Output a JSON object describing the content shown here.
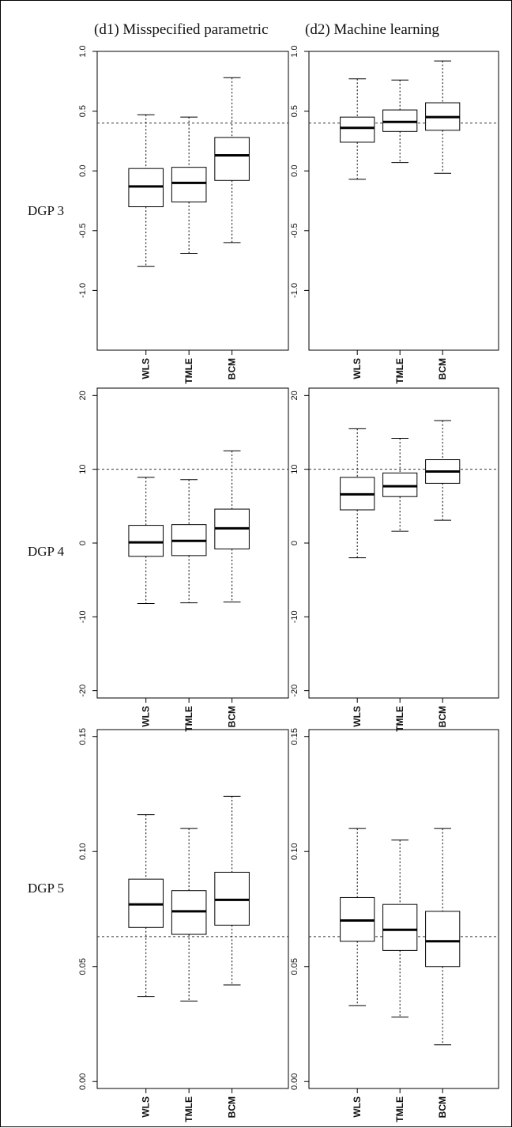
{
  "column_titles": [
    "(d1) Misspecified parametric",
    "(d2) Machine learning"
  ],
  "row_labels": [
    "DGP 3",
    "DGP 4",
    "DGP 5"
  ],
  "colors": {
    "box_stroke": "#000000",
    "median": "#000000",
    "reference_line": "#333333",
    "background": "#ffffff"
  },
  "chart_data": [
    {
      "type": "boxplot",
      "row": "DGP 3",
      "column": "(d1) Misspecified parametric",
      "categories": [
        "WLS",
        "TMLE",
        "BCM"
      ],
      "ylim": [
        -1.5,
        1.0
      ],
      "yticks": [
        1.0,
        0.5,
        0.0,
        -0.5,
        -1.0
      ],
      "ytick_labels": [
        "1.0",
        "0.5",
        "0.0",
        "-0.5",
        "-1.0"
      ],
      "reference_line": 0.4,
      "boxes": [
        {
          "label": "WLS",
          "whisker_low": -0.8,
          "q1": -0.3,
          "median": -0.13,
          "q3": 0.02,
          "whisker_high": 0.47
        },
        {
          "label": "TMLE",
          "whisker_low": -0.69,
          "q1": -0.26,
          "median": -0.1,
          "q3": 0.03,
          "whisker_high": 0.45
        },
        {
          "label": "BCM",
          "whisker_low": -0.6,
          "q1": -0.08,
          "median": 0.13,
          "q3": 0.28,
          "whisker_high": 0.78
        }
      ]
    },
    {
      "type": "boxplot",
      "row": "DGP 3",
      "column": "(d2) Machine learning",
      "categories": [
        "WLS",
        "TMLE",
        "BCM"
      ],
      "ylim": [
        -1.5,
        1.0
      ],
      "yticks": [
        1.0,
        0.5,
        0.0,
        -0.5,
        -1.0
      ],
      "ytick_labels": [
        "1.0",
        "0.5",
        "0.0",
        "-0.5",
        "-1.0"
      ],
      "reference_line": 0.4,
      "boxes": [
        {
          "label": "WLS",
          "whisker_low": -0.07,
          "q1": 0.24,
          "median": 0.36,
          "q3": 0.45,
          "whisker_high": 0.77
        },
        {
          "label": "TMLE",
          "whisker_low": 0.07,
          "q1": 0.33,
          "median": 0.41,
          "q3": 0.51,
          "whisker_high": 0.76
        },
        {
          "label": "BCM",
          "whisker_low": -0.02,
          "q1": 0.34,
          "median": 0.45,
          "q3": 0.57,
          "whisker_high": 0.92
        }
      ]
    },
    {
      "type": "boxplot",
      "row": "DGP 4",
      "column": "(d1) Misspecified parametric",
      "categories": [
        "WLS",
        "TMLE",
        "BCM"
      ],
      "ylim": [
        -21,
        21
      ],
      "yticks": [
        20,
        10,
        0,
        -10,
        -20
      ],
      "ytick_labels": [
        "20",
        "10",
        "0",
        "-10",
        "-20"
      ],
      "reference_line": 10,
      "boxes": [
        {
          "label": "WLS",
          "whisker_low": -8.2,
          "q1": -1.8,
          "median": 0.1,
          "q3": 2.4,
          "whisker_high": 8.9
        },
        {
          "label": "TMLE",
          "whisker_low": -8.1,
          "q1": -1.7,
          "median": 0.3,
          "q3": 2.5,
          "whisker_high": 8.6
        },
        {
          "label": "BCM",
          "whisker_low": -8.0,
          "q1": -0.8,
          "median": 2.0,
          "q3": 4.6,
          "whisker_high": 12.5
        }
      ]
    },
    {
      "type": "boxplot",
      "row": "DGP 4",
      "column": "(d2) Machine learning",
      "categories": [
        "WLS",
        "TMLE",
        "BCM"
      ],
      "ylim": [
        -21,
        21
      ],
      "yticks": [
        20,
        10,
        0,
        -10,
        -20
      ],
      "ytick_labels": [
        "20",
        "10",
        "0",
        "-10",
        "-20"
      ],
      "reference_line": 10,
      "boxes": [
        {
          "label": "WLS",
          "whisker_low": -2.0,
          "q1": 4.5,
          "median": 6.6,
          "q3": 8.9,
          "whisker_high": 15.5
        },
        {
          "label": "TMLE",
          "whisker_low": 1.6,
          "q1": 6.3,
          "median": 7.7,
          "q3": 9.5,
          "whisker_high": 14.2
        },
        {
          "label": "BCM",
          "whisker_low": 3.1,
          "q1": 8.1,
          "median": 9.7,
          "q3": 11.3,
          "whisker_high": 16.6
        }
      ]
    },
    {
      "type": "boxplot",
      "row": "DGP 5",
      "column": "(d1) Misspecified parametric",
      "categories": [
        "WLS",
        "TMLE",
        "BCM"
      ],
      "ylim": [
        -0.003,
        0.153
      ],
      "yticks": [
        0.15,
        0.1,
        0.05,
        0.0
      ],
      "ytick_labels": [
        "0.15",
        "0.10",
        "0.05",
        "0.00"
      ],
      "reference_line": 0.063,
      "boxes": [
        {
          "label": "WLS",
          "whisker_low": 0.037,
          "q1": 0.067,
          "median": 0.077,
          "q3": 0.088,
          "whisker_high": 0.116
        },
        {
          "label": "TMLE",
          "whisker_low": 0.035,
          "q1": 0.064,
          "median": 0.074,
          "q3": 0.083,
          "whisker_high": 0.11
        },
        {
          "label": "BCM",
          "whisker_low": 0.042,
          "q1": 0.068,
          "median": 0.079,
          "q3": 0.091,
          "whisker_high": 0.124
        }
      ]
    },
    {
      "type": "boxplot",
      "row": "DGP 5",
      "column": "(d2) Machine learning",
      "categories": [
        "WLS",
        "TMLE",
        "BCM"
      ],
      "ylim": [
        -0.003,
        0.153
      ],
      "yticks": [
        0.15,
        0.1,
        0.05,
        0.0
      ],
      "ytick_labels": [
        "0.15",
        "0.10",
        "0.05",
        "0.00"
      ],
      "reference_line": 0.063,
      "boxes": [
        {
          "label": "WLS",
          "whisker_low": 0.033,
          "q1": 0.061,
          "median": 0.07,
          "q3": 0.08,
          "whisker_high": 0.11
        },
        {
          "label": "TMLE",
          "whisker_low": 0.028,
          "q1": 0.057,
          "median": 0.066,
          "q3": 0.077,
          "whisker_high": 0.105
        },
        {
          "label": "BCM",
          "whisker_low": 0.016,
          "q1": 0.05,
          "median": 0.061,
          "q3": 0.074,
          "whisker_high": 0.11
        }
      ]
    }
  ]
}
